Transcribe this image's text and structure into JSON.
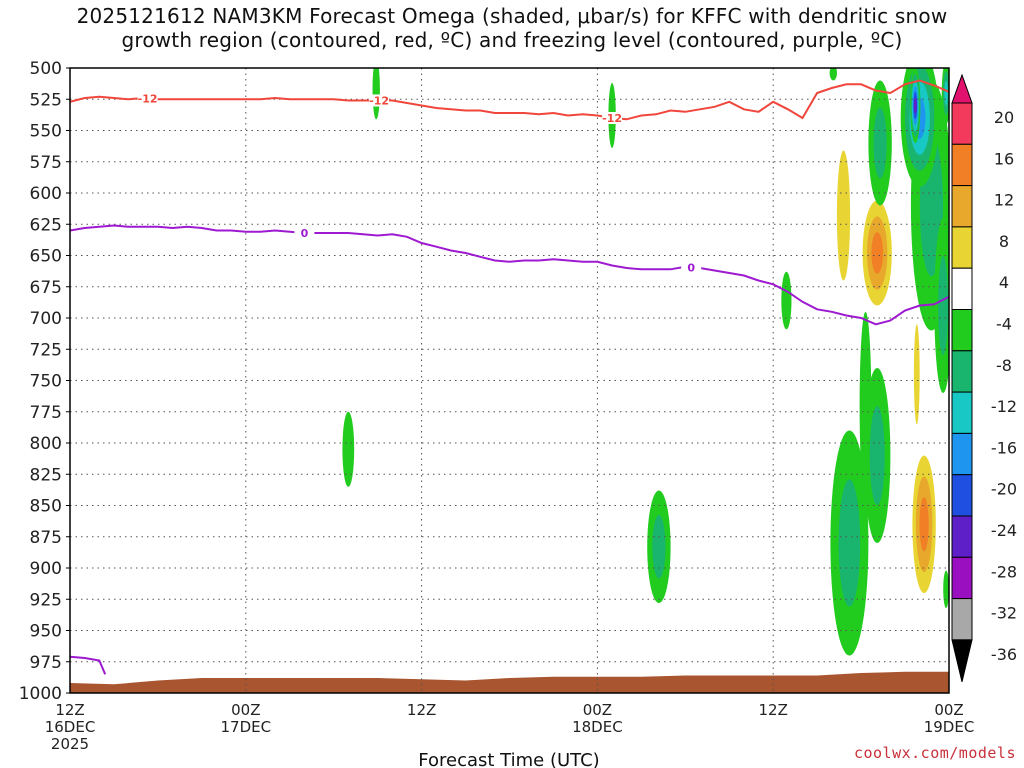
{
  "title": {
    "line1": "2025121612 NAM3KM Forecast Omega (shaded, μbar/s) for KFFC with dendritic snow",
    "line2": "growth region (contoured, red, ºC) and freezing level (contoured, purple, ºC)"
  },
  "credit": "coolwx.com/models",
  "chart_data": {
    "type": "heatmap",
    "xlabel": "Forecast Time (UTC)",
    "x_range_hours": [
      0,
      60
    ],
    "x_ticks": [
      {
        "h": 0,
        "l1": "12Z",
        "l2": "16DEC",
        "l3": "2025"
      },
      {
        "h": 12,
        "l1": "00Z",
        "l2": "17DEC",
        "l3": ""
      },
      {
        "h": 24,
        "l1": "12Z",
        "l2": "",
        "l3": ""
      },
      {
        "h": 36,
        "l1": "00Z",
        "l2": "18DEC",
        "l3": ""
      },
      {
        "h": 48,
        "l1": "12Z",
        "l2": "",
        "l3": ""
      },
      {
        "h": 60,
        "l1": "00Z",
        "l2": "19DEC",
        "l3": ""
      }
    ],
    "y_ticks": [
      500,
      525,
      550,
      575,
      600,
      625,
      650,
      675,
      700,
      725,
      750,
      775,
      800,
      825,
      850,
      875,
      900,
      925,
      950,
      975,
      1000
    ],
    "y_range_mb": [
      500,
      1000
    ],
    "grid": true,
    "colorbar": {
      "ticks": [
        20,
        16,
        12,
        8,
        4,
        -4,
        -8,
        -12,
        -16,
        -20,
        -24,
        -28,
        -32,
        -36
      ],
      "colors": [
        "#f43a5c",
        "#f07f26",
        "#e8a82b",
        "#e8d534",
        "#ffffff",
        "#22cc1f",
        "#19b46e",
        "#17c8c4",
        "#1e96f0",
        "#1f4fe0",
        "#5f1fc8",
        "#9a10c0",
        "#a8a8a8"
      ],
      "top_arrow": "#e0126e",
      "bottom_arrow": "#000000"
    },
    "dgz_label": "-12",
    "dgz_color": "#f0463c",
    "dgz_line": [
      [
        0,
        527
      ],
      [
        1,
        524
      ],
      [
        2,
        523
      ],
      [
        3,
        524
      ],
      [
        4,
        525
      ],
      [
        5,
        524
      ],
      [
        6,
        525
      ],
      [
        7,
        525
      ],
      [
        8,
        525
      ],
      [
        9,
        525
      ],
      [
        10,
        525
      ],
      [
        11,
        525
      ],
      [
        12,
        525
      ],
      [
        13,
        525
      ],
      [
        14,
        524
      ],
      [
        15,
        525
      ],
      [
        16,
        525
      ],
      [
        17,
        525
      ],
      [
        18,
        525
      ],
      [
        19,
        526
      ],
      [
        20,
        526
      ],
      [
        21,
        526
      ],
      [
        22,
        526
      ],
      [
        23,
        528
      ],
      [
        24,
        530
      ],
      [
        25,
        532
      ],
      [
        26,
        533
      ],
      [
        27,
        534
      ],
      [
        28,
        534
      ],
      [
        29,
        536
      ],
      [
        30,
        536
      ],
      [
        31,
        536
      ],
      [
        32,
        537
      ],
      [
        33,
        536
      ],
      [
        34,
        538
      ],
      [
        35,
        537
      ],
      [
        36,
        538
      ],
      [
        37,
        540
      ],
      [
        38,
        541
      ],
      [
        39,
        538
      ],
      [
        40,
        537
      ],
      [
        41,
        534
      ],
      [
        42,
        535
      ],
      [
        43,
        533
      ],
      [
        44,
        531
      ],
      [
        45,
        527
      ],
      [
        46,
        533
      ],
      [
        47,
        535
      ],
      [
        48,
        527
      ],
      [
        49,
        533
      ],
      [
        50,
        540
      ],
      [
        51,
        520
      ],
      [
        52,
        516
      ],
      [
        53,
        513
      ],
      [
        54,
        513
      ],
      [
        55,
        518
      ],
      [
        56,
        520
      ],
      [
        57,
        513
      ],
      [
        58,
        510
      ],
      [
        59,
        514
      ],
      [
        60,
        519
      ]
    ],
    "frz_label": "0",
    "frz_color": "#9e1ad1",
    "frz_line": [
      [
        0,
        630
      ],
      [
        1,
        628
      ],
      [
        2,
        627
      ],
      [
        3,
        626
      ],
      [
        4,
        627
      ],
      [
        5,
        627
      ],
      [
        6,
        627
      ],
      [
        7,
        628
      ],
      [
        8,
        627
      ],
      [
        9,
        628
      ],
      [
        10,
        630
      ],
      [
        11,
        630
      ],
      [
        12,
        631
      ],
      [
        13,
        631
      ],
      [
        14,
        630
      ],
      [
        15,
        631
      ],
      [
        16,
        632
      ],
      [
        17,
        632
      ],
      [
        18,
        632
      ],
      [
        19,
        632
      ],
      [
        20,
        633
      ],
      [
        21,
        634
      ],
      [
        22,
        633
      ],
      [
        23,
        635
      ],
      [
        24,
        640
      ],
      [
        25,
        643
      ],
      [
        26,
        646
      ],
      [
        27,
        648
      ],
      [
        28,
        651
      ],
      [
        29,
        654
      ],
      [
        30,
        655
      ],
      [
        31,
        654
      ],
      [
        32,
        654
      ],
      [
        33,
        653
      ],
      [
        34,
        654
      ],
      [
        35,
        655
      ],
      [
        36,
        655
      ],
      [
        37,
        658
      ],
      [
        38,
        660
      ],
      [
        39,
        661
      ],
      [
        40,
        661
      ],
      [
        41,
        661
      ],
      [
        42,
        659
      ],
      [
        43,
        660
      ],
      [
        44,
        662
      ],
      [
        45,
        664
      ],
      [
        46,
        666
      ],
      [
        47,
        670
      ],
      [
        48,
        673
      ],
      [
        49,
        679
      ],
      [
        50,
        687
      ],
      [
        51,
        693
      ],
      [
        52,
        695
      ],
      [
        53,
        698
      ],
      [
        54,
        700
      ],
      [
        55,
        705
      ],
      [
        56,
        702
      ],
      [
        57,
        694
      ],
      [
        58,
        690
      ],
      [
        59,
        689
      ],
      [
        60,
        683
      ]
    ],
    "frz_line_low": [
      [
        0,
        971
      ],
      [
        1,
        972
      ],
      [
        2,
        974
      ],
      [
        2.4,
        985
      ]
    ],
    "terrain_top_mb": [
      [
        0,
        992
      ],
      [
        3,
        993
      ],
      [
        6,
        990
      ],
      [
        9,
        988
      ],
      [
        12,
        988
      ],
      [
        18,
        988
      ],
      [
        21,
        988
      ],
      [
        24,
        989
      ],
      [
        27,
        990
      ],
      [
        30,
        988
      ],
      [
        33,
        987
      ],
      [
        36,
        987
      ],
      [
        39,
        987
      ],
      [
        42,
        986
      ],
      [
        45,
        986
      ],
      [
        48,
        986
      ],
      [
        51,
        986
      ],
      [
        54,
        984
      ],
      [
        57,
        983
      ],
      [
        60,
        983
      ]
    ],
    "terrain_color": "#a85530",
    "omega_blobs": [
      {
        "h": 20.9,
        "p": 517,
        "rh": 0.25,
        "rp": 24,
        "levels": [
          -4
        ]
      },
      {
        "h": 37.0,
        "p": 538,
        "rh": 0.25,
        "rp": 26,
        "levels": [
          -4
        ]
      },
      {
        "h": 52.1,
        "p": 504,
        "rh": 0.25,
        "rp": 6,
        "levels": [
          -4
        ]
      },
      {
        "h": 48.9,
        "p": 686,
        "rh": 0.35,
        "rp": 23,
        "levels": [
          -4
        ]
      },
      {
        "h": 19.0,
        "p": 805,
        "rh": 0.4,
        "rp": 30,
        "levels": [
          -4
        ]
      },
      {
        "h": 40.2,
        "p": 883,
        "rh": 0.8,
        "rp": 45,
        "levels": [
          -4,
          -8
        ]
      },
      {
        "h": 52.8,
        "p": 618,
        "rh": 0.45,
        "rp": 52,
        "levels": [
          4
        ]
      },
      {
        "h": 55.1,
        "p": 648,
        "rh": 1.0,
        "rp": 42,
        "levels": [
          4,
          8,
          12
        ]
      },
      {
        "h": 53.2,
        "p": 880,
        "rh": 1.3,
        "rp": 90,
        "levels": [
          -4,
          -8
        ]
      },
      {
        "h": 54.3,
        "p": 770,
        "rh": 0.4,
        "rp": 75,
        "levels": [
          -4
        ]
      },
      {
        "h": 55.1,
        "p": 810,
        "rh": 0.9,
        "rp": 70,
        "levels": [
          -4,
          -8
        ]
      },
      {
        "h": 57.8,
        "p": 745,
        "rh": 0.2,
        "rp": 40,
        "levels": [
          4
        ]
      },
      {
        "h": 58.3,
        "p": 865,
        "rh": 0.8,
        "rp": 55,
        "levels": [
          4,
          8,
          12
        ]
      },
      {
        "h": 58.8,
        "p": 610,
        "rh": 1.4,
        "rp": 100,
        "levels": [
          -4,
          -8
        ]
      },
      {
        "h": 59.6,
        "p": 690,
        "rh": 0.6,
        "rp": 70,
        "levels": [
          -4,
          -8
        ]
      },
      {
        "h": 55.3,
        "p": 560,
        "rh": 0.8,
        "rp": 50,
        "levels": [
          -4,
          -8
        ]
      },
      {
        "h": 58.0,
        "p": 540,
        "rh": 1.3,
        "rp": 55,
        "levels": [
          -4,
          -8,
          -12,
          -16
        ]
      },
      {
        "h": 57.7,
        "p": 530,
        "rh": 0.35,
        "rp": 30,
        "levels": [
          -4,
          -8,
          -12,
          -16,
          -20,
          -24
        ]
      },
      {
        "h": 59.8,
        "p": 520,
        "rh": 0.3,
        "rp": 25,
        "levels": [
          -4,
          -8,
          -12
        ]
      },
      {
        "h": 59.8,
        "p": 917,
        "rh": 0.2,
        "rp": 15,
        "levels": [
          -4
        ]
      }
    ]
  }
}
